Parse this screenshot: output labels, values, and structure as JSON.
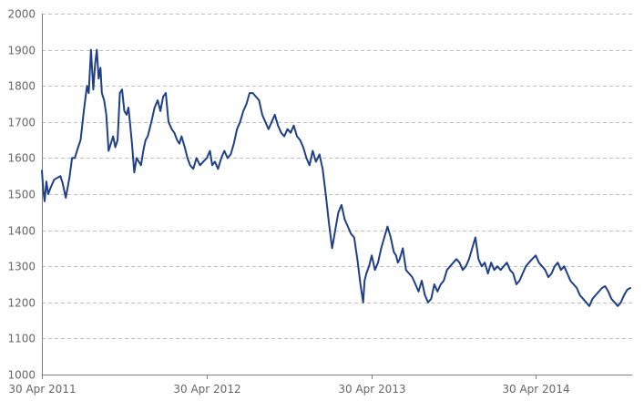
{
  "chart_data": {
    "type": "line",
    "title": "",
    "xlabel": "",
    "ylabel": "",
    "ylim": [
      1000,
      2000
    ],
    "yticks": [
      1000,
      1100,
      1200,
      1300,
      1400,
      1500,
      1600,
      1700,
      1800,
      1900,
      2000
    ],
    "xticks": [
      {
        "date": "2011-04-30",
        "label": "30 Apr 2011"
      },
      {
        "date": "2012-04-30",
        "label": "30 Apr 2012"
      },
      {
        "date": "2013-04-30",
        "label": "30 Apr 2013"
      },
      {
        "date": "2014-04-30",
        "label": "30 Apr 2014"
      }
    ],
    "xlim": [
      "2011-04-30",
      "2014-11-30"
    ],
    "grid": true,
    "line_color": "#1f3f86",
    "series": [
      {
        "name": "",
        "x": [
          "2011-04-30",
          "2011-05-03",
          "2011-05-06",
          "2011-05-10",
          "2011-05-14",
          "2011-05-20",
          "2011-05-27",
          "2011-06-03",
          "2011-06-10",
          "2011-06-15",
          "2011-06-22",
          "2011-06-30",
          "2011-07-06",
          "2011-07-12",
          "2011-07-18",
          "2011-07-25",
          "2011-08-01",
          "2011-08-08",
          "2011-08-12",
          "2011-08-17",
          "2011-08-22",
          "2011-08-26",
          "2011-08-30",
          "2011-09-03",
          "2011-09-07",
          "2011-09-10",
          "2011-09-15",
          "2011-09-20",
          "2011-09-25",
          "2011-09-30",
          "2011-10-05",
          "2011-10-10",
          "2011-10-15",
          "2011-10-20",
          "2011-10-25",
          "2011-10-30",
          "2011-11-04",
          "2011-11-08",
          "2011-11-12",
          "2011-11-16",
          "2011-11-21",
          "2011-11-26",
          "2011-12-01",
          "2011-12-06",
          "2011-12-11",
          "2011-12-16",
          "2011-12-21",
          "2011-12-29",
          "2012-01-05",
          "2012-01-12",
          "2012-01-18",
          "2012-01-24",
          "2012-01-30",
          "2012-02-05",
          "2012-02-12",
          "2012-02-18",
          "2012-02-24",
          "2012-02-29",
          "2012-03-05",
          "2012-03-12",
          "2012-03-18",
          "2012-03-24",
          "2012-03-31",
          "2012-04-07",
          "2012-04-15",
          "2012-04-22",
          "2012-04-30",
          "2012-05-07",
          "2012-05-12",
          "2012-05-18",
          "2012-05-25",
          "2012-06-01",
          "2012-06-08",
          "2012-06-15",
          "2012-06-22",
          "2012-06-29",
          "2012-07-06",
          "2012-07-13",
          "2012-07-20",
          "2012-07-27",
          "2012-08-03",
          "2012-08-10",
          "2012-08-17",
          "2012-08-24",
          "2012-08-31",
          "2012-09-07",
          "2012-09-14",
          "2012-09-21",
          "2012-09-28",
          "2012-10-05",
          "2012-10-12",
          "2012-10-19",
          "2012-10-26",
          "2012-11-02",
          "2012-11-09",
          "2012-11-16",
          "2012-11-23",
          "2012-11-30",
          "2012-12-07",
          "2012-12-14",
          "2012-12-21",
          "2012-12-28",
          "2013-01-05",
          "2013-01-12",
          "2013-01-19",
          "2013-01-26",
          "2013-02-02",
          "2013-02-09",
          "2013-02-16",
          "2013-02-23",
          "2013-03-02",
          "2013-03-09",
          "2013-03-16",
          "2013-03-23",
          "2013-03-30",
          "2013-04-06",
          "2013-04-12",
          "2013-04-15",
          "2013-04-19",
          "2013-04-25",
          "2013-05-01",
          "2013-05-08",
          "2013-05-15",
          "2013-05-22",
          "2013-05-29",
          "2013-06-05",
          "2013-06-12",
          "2013-06-19",
          "2013-06-24",
          "2013-06-28",
          "2013-07-02",
          "2013-07-09",
          "2013-07-16",
          "2013-07-23",
          "2013-07-30",
          "2013-08-06",
          "2013-08-13",
          "2013-08-20",
          "2013-08-27",
          "2013-09-03",
          "2013-09-10",
          "2013-09-17",
          "2013-09-24",
          "2013-10-01",
          "2013-10-08",
          "2013-10-15",
          "2013-10-22",
          "2013-10-29",
          "2013-11-05",
          "2013-11-12",
          "2013-11-19",
          "2013-11-26",
          "2013-12-03",
          "2013-12-10",
          "2013-12-17",
          "2013-12-24",
          "2013-12-31",
          "2014-01-07",
          "2014-01-14",
          "2014-01-21",
          "2014-01-28",
          "2014-02-04",
          "2014-02-11",
          "2014-02-18",
          "2014-02-25",
          "2014-03-04",
          "2014-03-11",
          "2014-03-18",
          "2014-03-25",
          "2014-04-01",
          "2014-04-08",
          "2014-04-15",
          "2014-04-22",
          "2014-04-30",
          "2014-05-07",
          "2014-05-14",
          "2014-05-21",
          "2014-05-28",
          "2014-06-04",
          "2014-06-11",
          "2014-06-18",
          "2014-06-25",
          "2014-07-02",
          "2014-07-09",
          "2014-07-16",
          "2014-07-23",
          "2014-07-30",
          "2014-08-06",
          "2014-08-13",
          "2014-08-20",
          "2014-08-27",
          "2014-09-03",
          "2014-09-10",
          "2014-09-17",
          "2014-09-24",
          "2014-10-01",
          "2014-10-08",
          "2014-10-15",
          "2014-10-22",
          "2014-10-29",
          "2014-11-05",
          "2014-11-12",
          "2014-11-19",
          "2014-11-26"
        ],
        "y": [
          1565,
          1510,
          1480,
          1535,
          1500,
          1520,
          1540,
          1545,
          1550,
          1530,
          1490,
          1545,
          1600,
          1600,
          1625,
          1650,
          1730,
          1800,
          1780,
          1900,
          1790,
          1860,
          1900,
          1820,
          1850,
          1780,
          1760,
          1720,
          1620,
          1640,
          1660,
          1630,
          1650,
          1780,
          1790,
          1730,
          1720,
          1740,
          1690,
          1640,
          1560,
          1600,
          1590,
          1580,
          1620,
          1650,
          1660,
          1700,
          1740,
          1760,
          1730,
          1770,
          1780,
          1700,
          1680,
          1670,
          1650,
          1640,
          1660,
          1630,
          1600,
          1580,
          1570,
          1600,
          1580,
          1590,
          1600,
          1620,
          1580,
          1590,
          1570,
          1600,
          1620,
          1600,
          1610,
          1640,
          1680,
          1700,
          1730,
          1750,
          1780,
          1780,
          1770,
          1760,
          1720,
          1700,
          1680,
          1700,
          1720,
          1690,
          1670,
          1660,
          1680,
          1670,
          1690,
          1660,
          1650,
          1630,
          1600,
          1580,
          1620,
          1590,
          1610,
          1570,
          1500,
          1420,
          1350,
          1400,
          1450,
          1470,
          1430,
          1410,
          1390,
          1380,
          1320,
          1250,
          1200,
          1260,
          1280,
          1300,
          1330,
          1290,
          1310,
          1350,
          1380,
          1410,
          1380,
          1340,
          1330,
          1310,
          1320,
          1350,
          1290,
          1280,
          1270,
          1250,
          1230,
          1260,
          1220,
          1200,
          1210,
          1250,
          1230,
          1250,
          1260,
          1290,
          1300,
          1310,
          1320,
          1310,
          1290,
          1300,
          1320,
          1350,
          1380,
          1320,
          1300,
          1310,
          1280,
          1310,
          1290,
          1300,
          1290,
          1300,
          1310,
          1290,
          1280,
          1250,
          1260,
          1280,
          1300,
          1310,
          1320,
          1330,
          1310,
          1300,
          1290,
          1270,
          1280,
          1300,
          1310,
          1290,
          1300,
          1280,
          1260,
          1250,
          1240,
          1220,
          1210,
          1200,
          1190,
          1210,
          1220,
          1230,
          1240,
          1245,
          1230,
          1210,
          1200,
          1190,
          1200,
          1220,
          1235,
          1240
        ]
      }
    ]
  }
}
